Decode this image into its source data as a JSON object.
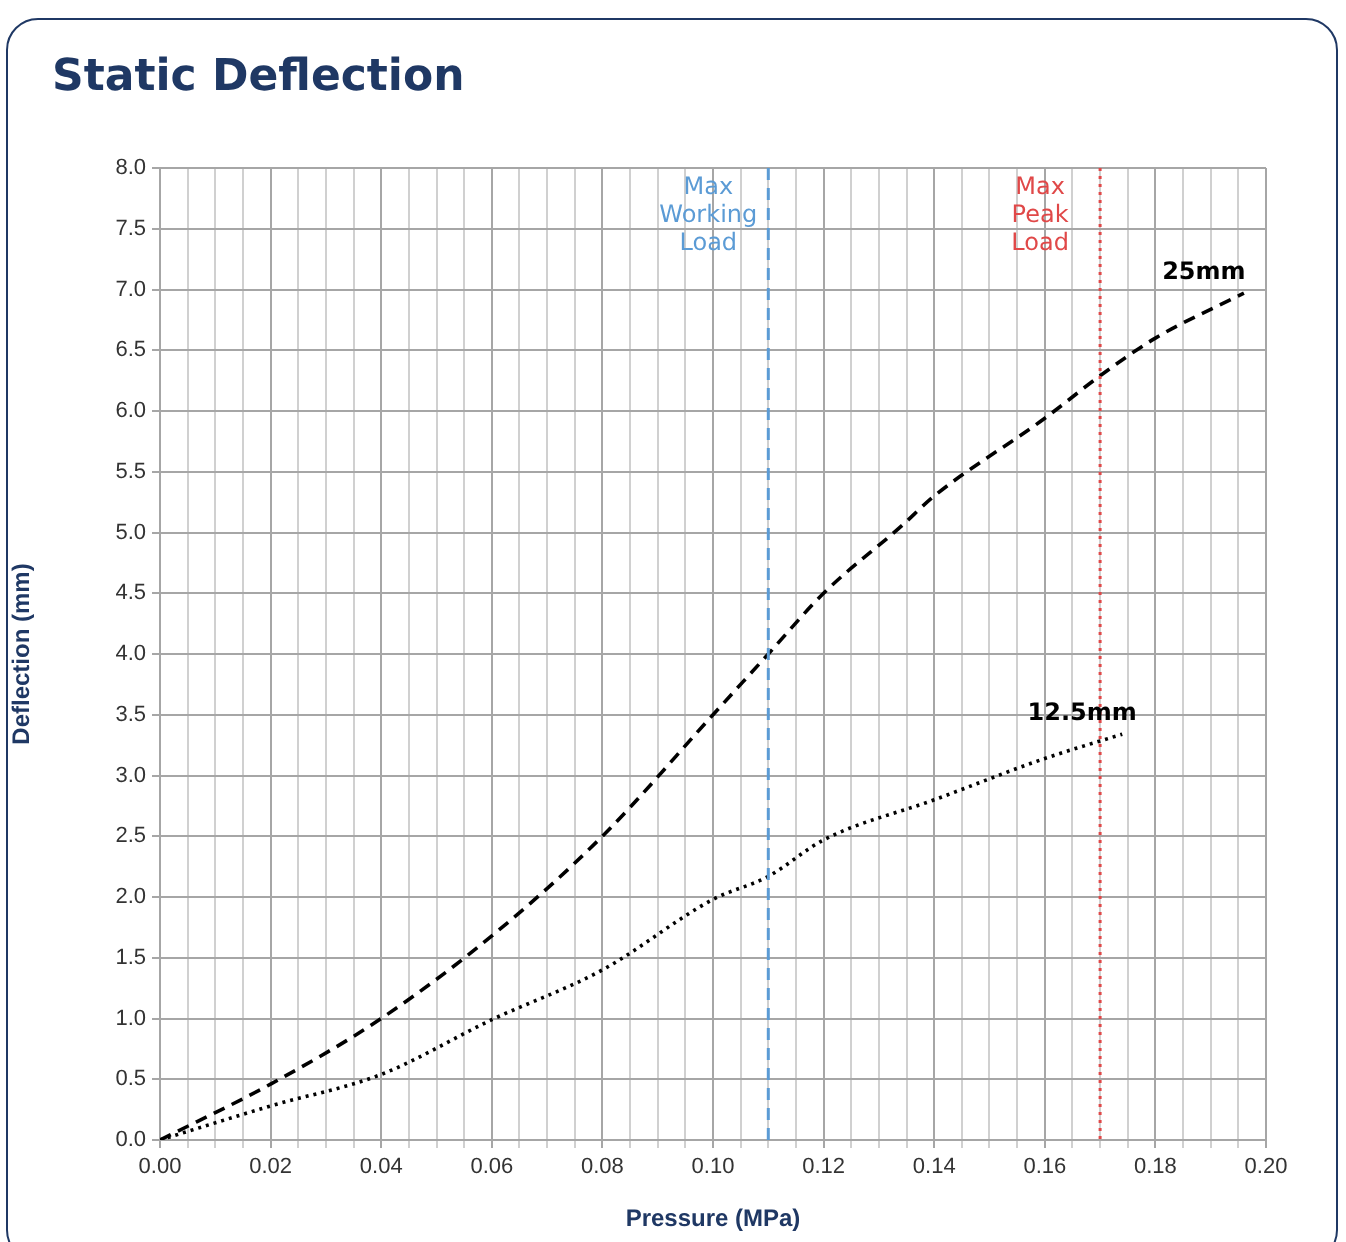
{
  "chart_data": {
    "type": "line",
    "title": "Static Deflection",
    "xlabel": "Pressure (MPa)",
    "ylabel": "Deflection (mm)",
    "xlim": [
      0,
      0.2
    ],
    "ylim": [
      0,
      8
    ],
    "xticks": [
      {
        "value": 0,
        "label": "0.00"
      },
      {
        "value": 0.005,
        "label": null
      },
      {
        "value": 0.01,
        "label": null
      },
      {
        "value": 0.015,
        "label": null
      },
      {
        "value": 0.02,
        "label": "0.02"
      },
      {
        "value": 0.025,
        "label": null
      },
      {
        "value": 0.03,
        "label": null
      },
      {
        "value": 0.035,
        "label": null
      },
      {
        "value": 0.04,
        "label": "0.04"
      },
      {
        "value": 0.045,
        "label": null
      },
      {
        "value": 0.05,
        "label": null
      },
      {
        "value": 0.055,
        "label": null
      },
      {
        "value": 0.06,
        "label": "0.06"
      },
      {
        "value": 0.065,
        "label": null
      },
      {
        "value": 0.07,
        "label": null
      },
      {
        "value": 0.075,
        "label": null
      },
      {
        "value": 0.08,
        "label": "0.08"
      },
      {
        "value": 0.085,
        "label": null
      },
      {
        "value": 0.09,
        "label": null
      },
      {
        "value": 0.095,
        "label": null
      },
      {
        "value": 0.1,
        "label": "0.10"
      },
      {
        "value": 0.105,
        "label": null
      },
      {
        "value": 0.11,
        "label": null
      },
      {
        "value": 0.115,
        "label": null
      },
      {
        "value": 0.12,
        "label": "0.12"
      },
      {
        "value": 0.125,
        "label": null
      },
      {
        "value": 0.13,
        "label": null
      },
      {
        "value": 0.135,
        "label": null
      },
      {
        "value": 0.14,
        "label": "0.14"
      },
      {
        "value": 0.145,
        "label": null
      },
      {
        "value": 0.15,
        "label": null
      },
      {
        "value": 0.155,
        "label": null
      },
      {
        "value": 0.16,
        "label": "0.16"
      },
      {
        "value": 0.165,
        "label": null
      },
      {
        "value": 0.17,
        "label": null
      },
      {
        "value": 0.175,
        "label": null
      },
      {
        "value": 0.18,
        "label": "0.18"
      },
      {
        "value": 0.185,
        "label": null
      },
      {
        "value": 0.19,
        "label": null
      },
      {
        "value": 0.195,
        "label": null
      },
      {
        "value": 0.2,
        "label": "0.20"
      }
    ],
    "yticks": [
      {
        "value": 0,
        "label": "0.0"
      },
      {
        "value": 0.5,
        "label": "0.5"
      },
      {
        "value": 1,
        "label": "1.0"
      },
      {
        "value": 1.5,
        "label": "1.5"
      },
      {
        "value": 2,
        "label": "2.0"
      },
      {
        "value": 2.5,
        "label": "2.5"
      },
      {
        "value": 3,
        "label": "3.0"
      },
      {
        "value": 3.5,
        "label": "3.5"
      },
      {
        "value": 4,
        "label": "4.0"
      },
      {
        "value": 4.5,
        "label": "4.5"
      },
      {
        "value": 5,
        "label": "5.0"
      },
      {
        "value": 5.5,
        "label": "5.5"
      },
      {
        "value": 6,
        "label": "6.0"
      },
      {
        "value": 6.5,
        "label": "6.5"
      },
      {
        "value": 7,
        "label": "7.0"
      },
      {
        "value": 7.5,
        "label": "7.5"
      },
      {
        "value": 8,
        "label": "8.0"
      }
    ],
    "grid": true,
    "legend": false,
    "marker": "none",
    "series": [
      {
        "name": "25mm",
        "color": "#000000",
        "line_style": "dashed",
        "x": [
          0,
          0.02,
          0.04,
          0.06,
          0.08,
          0.1,
          0.11,
          0.12,
          0.134,
          0.14,
          0.16,
          0.17,
          0.18,
          0.196
        ],
        "values": [
          0,
          0.46,
          1.0,
          1.68,
          2.5,
          3.5,
          4.0,
          4.5,
          5.05,
          5.3,
          5.94,
          6.29,
          6.6,
          6.97
        ]
      },
      {
        "name": "12.5mm",
        "color": "#000000",
        "line_style": "dotted",
        "x": [
          0,
          0.02,
          0.04,
          0.06,
          0.08,
          0.1,
          0.11,
          0.12,
          0.14,
          0.16,
          0.174
        ],
        "values": [
          0,
          0.28,
          0.54,
          0.99,
          1.4,
          1.98,
          2.17,
          2.47,
          2.8,
          3.14,
          3.34
        ]
      }
    ],
    "ref_lines": [
      {
        "axis": "x",
        "value": 0.11,
        "label": "Max Working Load",
        "color": "#5b9bd5",
        "line_style": "dashed"
      },
      {
        "axis": "x",
        "value": 0.17,
        "label": "Max Peak Load",
        "color": "#e04848",
        "line_style": "dotted"
      }
    ]
  }
}
